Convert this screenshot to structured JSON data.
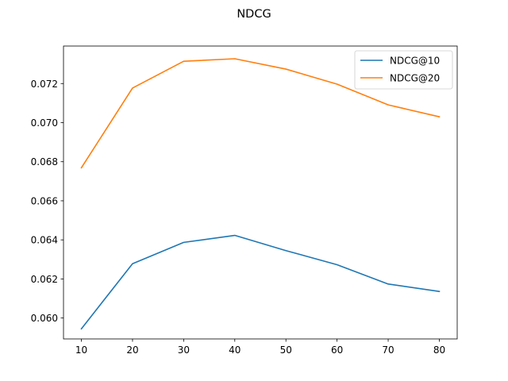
{
  "chart_data": {
    "type": "line",
    "title": "NDCG",
    "xlabel": "",
    "ylabel": "",
    "x": [
      10,
      20,
      30,
      40,
      50,
      60,
      70,
      80
    ],
    "xticks": [
      "10",
      "20",
      "30",
      "40",
      "50",
      "60",
      "70",
      "80"
    ],
    "yticks": [
      "0.060",
      "0.062",
      "0.064",
      "0.066",
      "0.068",
      "0.070",
      "0.072"
    ],
    "xlim": [
      6.5,
      83.5
    ],
    "ylim": [
      0.05893,
      0.07392
    ],
    "grid": false,
    "legend_position": "top-right",
    "series": [
      {
        "name": "NDCG@10",
        "color": "#1f77b4",
        "values": [
          0.05945,
          0.06278,
          0.06387,
          0.06423,
          0.06345,
          0.06273,
          0.06174,
          0.06136
        ]
      },
      {
        "name": "NDCG@20",
        "color": "#ff7f0e",
        "values": [
          0.06769,
          0.07177,
          0.07314,
          0.07327,
          0.07274,
          0.07197,
          0.07091,
          0.0703
        ]
      }
    ]
  }
}
